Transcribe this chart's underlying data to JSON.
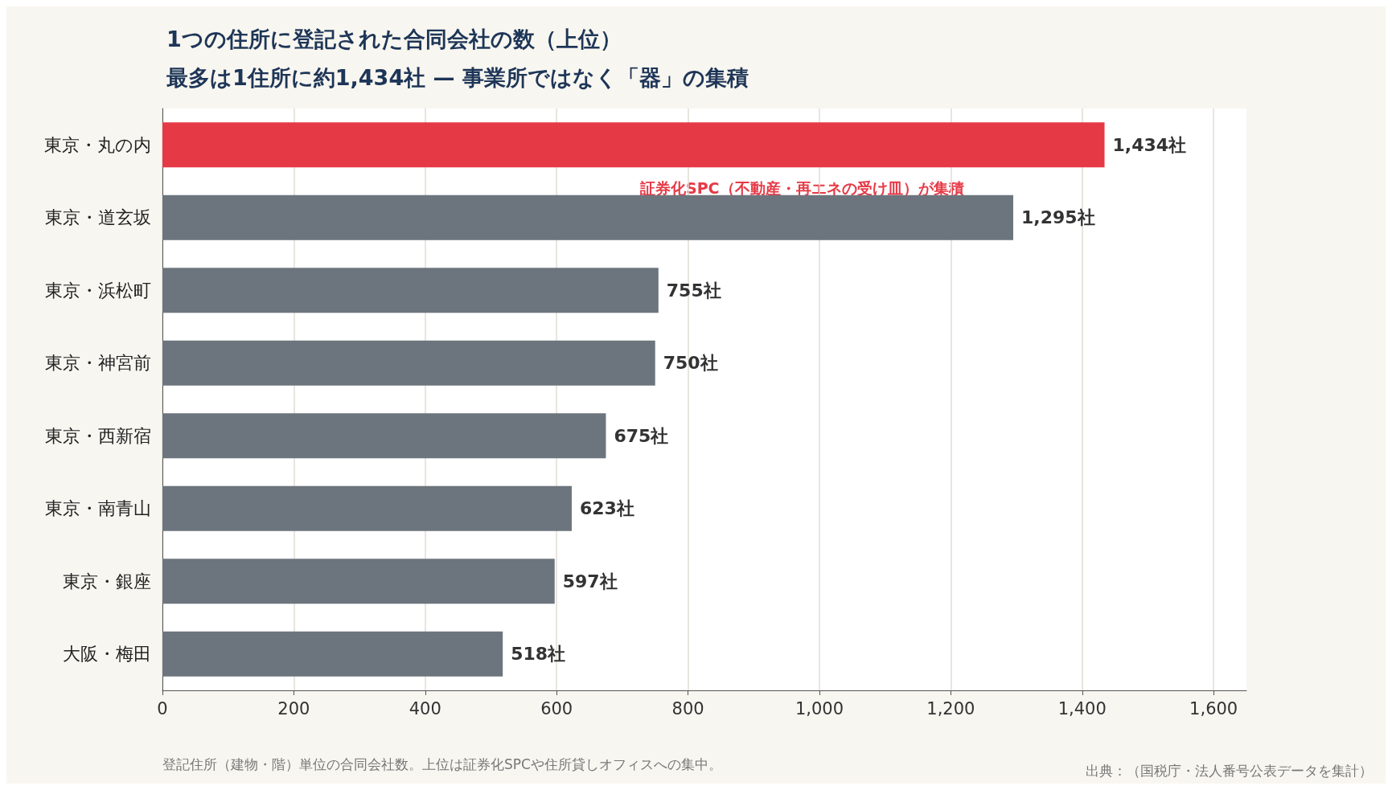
{
  "chart_data": {
    "type": "bar",
    "orientation": "horizontal",
    "title": "1つの住所に登記された合同会社の数（上位）",
    "subtitle": "最多は1住所に約1,434社 — 事業所ではなく「器」の集積",
    "categories": [
      "東京・丸の内",
      "東京・道玄坂",
      "東京・浜松町",
      "東京・神宮前",
      "東京・西新宿",
      "東京・南青山",
      "東京・銀座",
      "大阪・梅田"
    ],
    "values": [
      1434,
      1295,
      755,
      750,
      675,
      623,
      597,
      518
    ],
    "colors": [
      "#e63946",
      "#6c757d",
      "#6c757d",
      "#6c757d",
      "#6c757d",
      "#6c757d",
      "#6c757d",
      "#6c757d"
    ],
    "value_labels": [
      "1,434社",
      "1,295社",
      "755社",
      "750社",
      "675社",
      "623社",
      "597社",
      "518社"
    ],
    "xlim": [
      0,
      1650
    ],
    "xticks": [
      0,
      {
        "value": 200,
        "label": "200"
      },
      {
        "value": 400,
        "label": "400"
      },
      {
        "value": 600,
        "label": "600"
      },
      {
        "value": 800,
        "label": "800"
      },
      {
        "value": 1000,
        "label": "1,000"
      },
      {
        "value": 1200,
        "label": "1,200"
      },
      {
        "value": 1400,
        "label": "1,400"
      },
      {
        "value": 1600,
        "label": "1,600"
      }
    ],
    "grid": "x",
    "annotations": [
      "証券化SPC（不動産・再エネの受け皿）が集積",
      "登記住所（建物・階）単位の合同会社数。上位は証券化SPCや住所貸しオフィスへの集中。",
      "出典：（国税庁・法人番号公表データを集計）"
    ]
  }
}
